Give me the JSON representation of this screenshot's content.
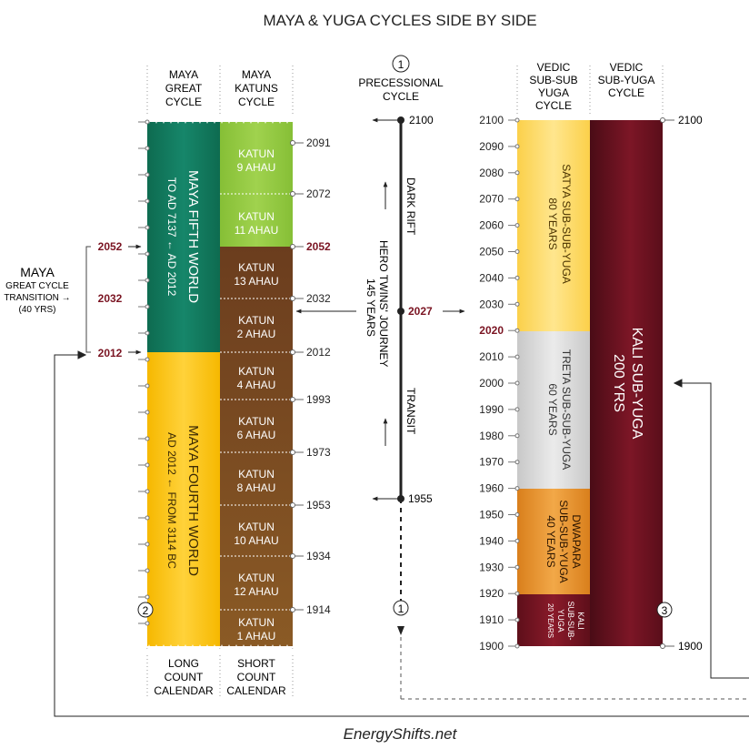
{
  "title": "MAYA & YUGA CYCLES SIDE BY SIDE",
  "footer": "EnergyShifts.net",
  "colors": {
    "maya_fifth": "#127a5c",
    "maya_fourth": "#f8c318",
    "katun_green": "#8dc63f",
    "katun_brown": "#7b4a22",
    "satya": "#fcd560",
    "treta": "#d4d4d4",
    "dwapara": "#e8962c",
    "kali_small": "#7a1422",
    "kali_big": "#6b1420",
    "accent_red": "#7a1422"
  },
  "maya": {
    "great_header": [
      "MAYA",
      "GREAT",
      "CYCLE"
    ],
    "katuns_header": [
      "MAYA",
      "KATUNS",
      "CYCLE"
    ],
    "fifth_world": [
      "MAYA FIFTH WORLD",
      "TO AD 7137 ← AD 2012"
    ],
    "fourth_world": [
      "MAYA FOURTH WORLD",
      "AD 2012 ← FROM 3114 BC"
    ],
    "katuns": [
      [
        "KATUN",
        "9 AHAU"
      ],
      [
        "KATUN",
        "11 AHAU"
      ],
      [
        "KATUN",
        "13 AHAU"
      ],
      [
        "KATUN",
        "2 AHAU"
      ],
      [
        "KATUN",
        "4 AHAU"
      ],
      [
        "KATUN",
        "6 AHAU"
      ],
      [
        "KATUN",
        "8 AHAU"
      ],
      [
        "KATUN",
        "10 AHAU"
      ],
      [
        "KATUN",
        "12 AHAU"
      ],
      [
        "KATUN",
        "1 AHAU"
      ]
    ],
    "katun_years": [
      "2091",
      "2072",
      "2052",
      "2032",
      "2012",
      "1993",
      "1973",
      "1953",
      "1934",
      "1914"
    ],
    "transition_years": [
      "2052",
      "2032",
      "2012"
    ],
    "transition_label": [
      "MAYA",
      "GREAT CYCLE",
      "TRANSITION →",
      "(40 YRS)"
    ],
    "long_count": [
      "LONG",
      "COUNT",
      "CALENDAR"
    ],
    "short_count": [
      "SHORT",
      "COUNT",
      "CALENDAR"
    ]
  },
  "precession": {
    "number": "1",
    "label": [
      "PRECESSIONAL",
      "CYCLE"
    ],
    "top_year": "2100",
    "mid_year": "2027",
    "bottom_year": "1955",
    "dark_rift": "DARK RIFT",
    "journey": [
      "HERO TWINS' JOURNEY",
      "145 YEARS"
    ],
    "transit": "TRANSIT"
  },
  "vedic": {
    "subsub_header": [
      "VEDIC",
      "SUB-SUB",
      "YUGA",
      "CYCLE"
    ],
    "sub_header": [
      "VEDIC",
      "SUB-YUGA",
      "CYCLE"
    ],
    "axis_years": [
      "2100",
      "2090",
      "2080",
      "2070",
      "2060",
      "2050",
      "2040",
      "2030",
      "2020",
      "2010",
      "2000",
      "1990",
      "1980",
      "1970",
      "1960",
      "1950",
      "1940",
      "1930",
      "1920",
      "1910",
      "1900"
    ],
    "satya": [
      "SATYA SUB-SUB-YUGA",
      "80 YEARS"
    ],
    "treta": [
      "TRETA SUB-SUB-YUGA",
      "60 YEARS"
    ],
    "dwapara": [
      "DWAPARA",
      "SUB-SUB-YUGA",
      "40 YEARS"
    ],
    "kali_small": [
      "KALI",
      "SUB-SUB-",
      "YUGA",
      "20 YEARS"
    ],
    "kali_big": [
      "KALI SUB-YUGA",
      "200 YRS"
    ],
    "right_top": "2100",
    "right_bottom": "1900",
    "marker_2": "2",
    "marker_3": "3"
  }
}
